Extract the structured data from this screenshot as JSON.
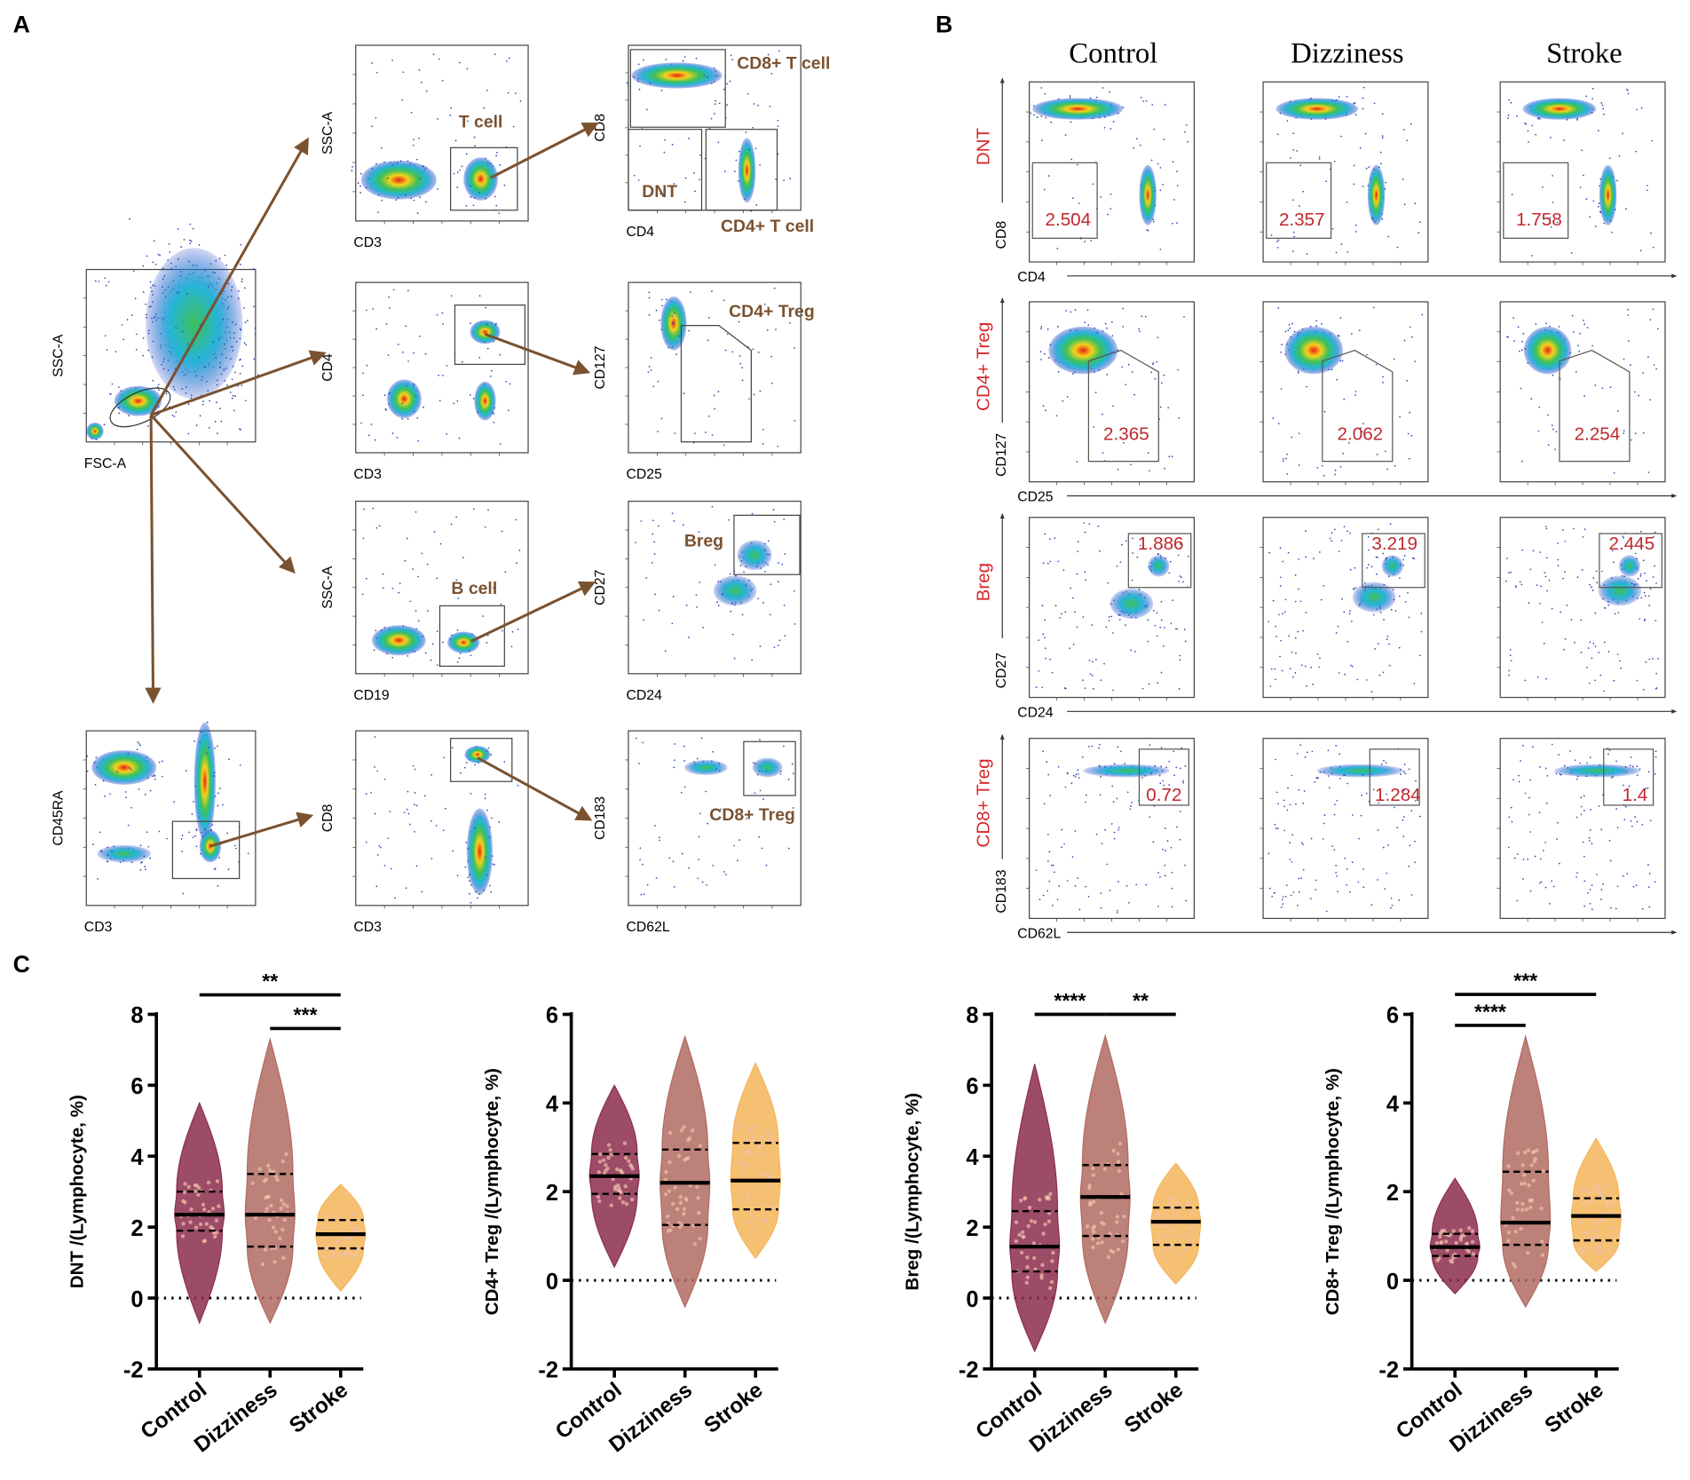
{
  "panel_labels": [
    "A",
    "B",
    "C"
  ],
  "panel_a": {
    "plots": [
      {
        "x_label": "FSC-A",
        "y_label": "SSC-A",
        "gates": []
      },
      {
        "x_label": "CD3",
        "y_label": "SSC-A",
        "gates": [
          "T cell"
        ]
      },
      {
        "x_label": "CD3",
        "y_label": "CD4",
        "gates": []
      },
      {
        "x_label": "CD19",
        "y_label": "SSC-A",
        "gates": [
          "B cell"
        ]
      },
      {
        "x_label": "CD3",
        "y_label": "CD45RA",
        "gates": []
      },
      {
        "x_label": "CD3",
        "y_label": "CD8",
        "gates": []
      },
      {
        "x_label": "CD4",
        "y_label": "CD8",
        "gates": [
          "CD8+ T cell",
          "DNT",
          "CD4+ T cell"
        ]
      },
      {
        "x_label": "CD25",
        "y_label": "CD127",
        "gates": [
          "CD4+ Treg"
        ]
      },
      {
        "x_label": "CD24",
        "y_label": "CD27",
        "gates": [
          "Breg"
        ]
      },
      {
        "x_label": "CD62L",
        "y_label": "CD183",
        "gates": [
          "CD8+ Treg"
        ]
      }
    ]
  },
  "panel_b": {
    "columns": [
      "Control",
      "Dizziness",
      "Stroke"
    ],
    "rows": [
      {
        "name": "DNT",
        "y_label": "CD8",
        "x_label": "CD4",
        "values": [
          2.504,
          2.357,
          1.758
        ]
      },
      {
        "name": "CD4+ Treg",
        "y_label": "CD127",
        "x_label": "CD25",
        "values": [
          2.365,
          2.062,
          2.254
        ]
      },
      {
        "name": "Breg",
        "y_label": "CD27",
        "x_label": "CD24",
        "values": [
          1.886,
          3.219,
          2.445
        ]
      },
      {
        "name": "CD8+ Treg",
        "y_label": "CD183",
        "x_label": "CD62L",
        "values": [
          0.72,
          1.284,
          1.4
        ]
      }
    ]
  },
  "chart_data": [
    {
      "type": "violin",
      "y_label": "DNT /(Lymphocyte, %)",
      "categories": [
        "Control",
        "Dizziness",
        "Stroke"
      ],
      "colors": [
        "#8c2d4e",
        "#b06b62",
        "#f5b55a"
      ],
      "min": [
        -0.7,
        -0.7,
        0.2
      ],
      "q1": [
        1.9,
        1.45,
        1.4
      ],
      "median": [
        2.35,
        2.35,
        1.8
      ],
      "q3": [
        3.0,
        3.5,
        2.2
      ],
      "max": [
        5.5,
        7.3,
        3.2
      ],
      "ylim": [
        -2,
        8
      ],
      "yticks": [
        -2,
        0,
        2,
        4,
        6,
        8
      ],
      "reference_line": 0,
      "annotations": [
        {
          "label": "**",
          "y": 8.55,
          "groups": [
            "Control",
            "Stroke"
          ]
        },
        {
          "label": "***",
          "y": 7.6,
          "groups": [
            "Dizziness",
            "Stroke"
          ]
        }
      ]
    },
    {
      "type": "violin",
      "y_label": "CD4+ Treg /(Lymphocyte, %)",
      "categories": [
        "Control",
        "Dizziness",
        "Stroke"
      ],
      "colors": [
        "#8c2d4e",
        "#b06b62",
        "#f5b55a"
      ],
      "min": [
        0.3,
        -0.6,
        0.5
      ],
      "q1": [
        1.95,
        1.25,
        1.6
      ],
      "median": [
        2.35,
        2.2,
        2.25
      ],
      "q3": [
        2.85,
        2.95,
        3.1
      ],
      "max": [
        4.4,
        5.5,
        4.9
      ],
      "ylim": [
        -2,
        6
      ],
      "yticks": [
        -2,
        0,
        2,
        4,
        6
      ],
      "reference_line": 0,
      "annotations": []
    },
    {
      "type": "violin",
      "y_label": "Breg /(Lymphocyte, %)",
      "categories": [
        "Control",
        "Dizziness",
        "Stroke"
      ],
      "colors": [
        "#8c2d4e",
        "#b06b62",
        "#f5b55a"
      ],
      "min": [
        -1.5,
        -0.7,
        0.4
      ],
      "q1": [
        0.75,
        1.75,
        1.5
      ],
      "median": [
        1.45,
        2.85,
        2.15
      ],
      "q3": [
        2.45,
        3.75,
        2.55
      ],
      "max": [
        6.6,
        7.4,
        3.8
      ],
      "ylim": [
        -2,
        8
      ],
      "yticks": [
        -2,
        0,
        2,
        4,
        6,
        8
      ],
      "reference_line": 0,
      "annotations": [
        {
          "label": "****",
          "y": 8.0,
          "groups": [
            "Control",
            "Dizziness"
          ]
        },
        {
          "label": "**",
          "y": 8.0,
          "groups": [
            "Dizziness",
            "Stroke"
          ]
        }
      ]
    },
    {
      "type": "violin",
      "y_label": "CD8+ Treg /(Lymphocyte, %)",
      "categories": [
        "Control",
        "Dizziness",
        "Stroke"
      ],
      "colors": [
        "#8c2d4e",
        "#b06b62",
        "#f5b55a"
      ],
      "min": [
        -0.3,
        -0.6,
        0.2
      ],
      "q1": [
        0.55,
        0.8,
        0.9
      ],
      "median": [
        0.75,
        1.3,
        1.45
      ],
      "q3": [
        1.05,
        2.45,
        1.85
      ],
      "max": [
        2.3,
        5.5,
        3.2
      ],
      "ylim": [
        -2,
        6
      ],
      "yticks": [
        -2,
        0,
        2,
        4,
        6
      ],
      "reference_line": 0,
      "annotations": [
        {
          "label": "***",
          "y": 6.45,
          "groups": [
            "Control",
            "Stroke"
          ]
        },
        {
          "label": "****",
          "y": 5.75,
          "groups": [
            "Control",
            "Dizziness"
          ]
        }
      ]
    }
  ]
}
